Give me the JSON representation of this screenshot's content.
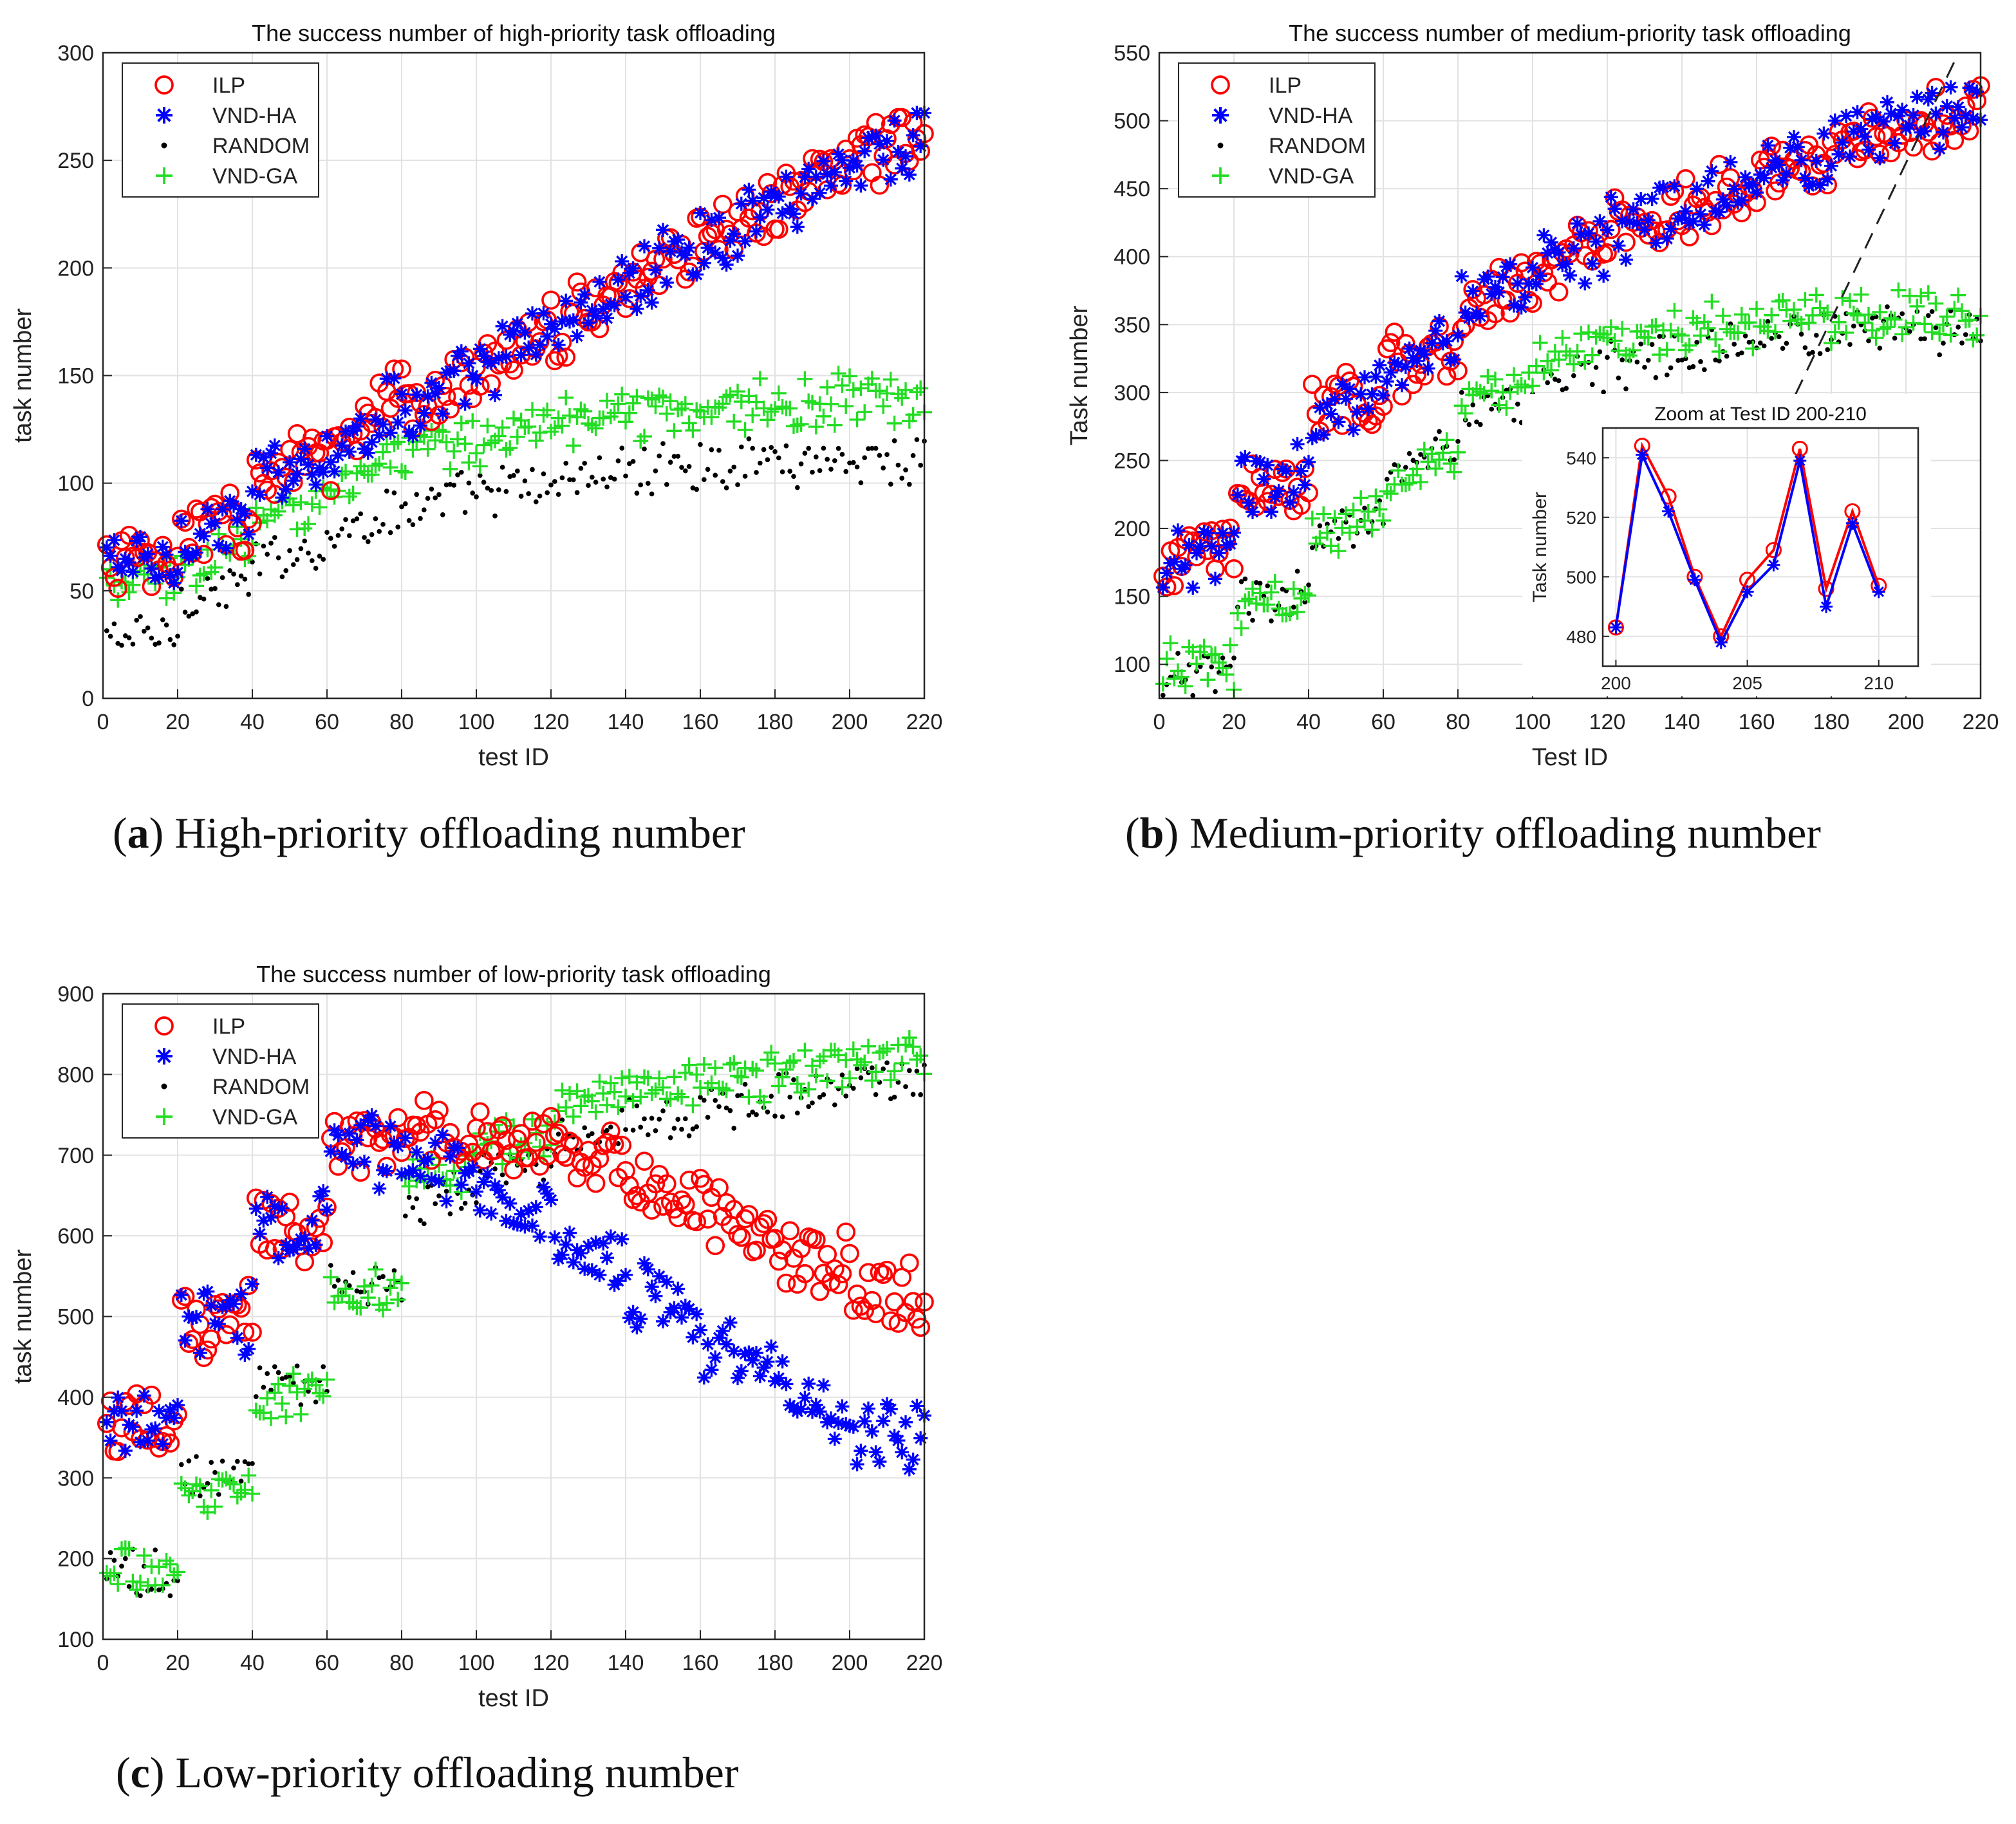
{
  "captions": {
    "a": {
      "letter": "a",
      "text": "High-priority offloading number"
    },
    "b": {
      "letter": "b",
      "text": "Medium-priority offloading number"
    },
    "c": {
      "letter": "c",
      "text": "Low-priority offloading number"
    }
  },
  "series_style": [
    {
      "name": "ILP",
      "marker": "circle",
      "color": "#ff0000"
    },
    {
      "name": "VND-HA",
      "marker": "asterisk",
      "color": "#0000ff"
    },
    {
      "name": "RANDOM",
      "marker": "dot",
      "color": "#000000"
    },
    {
      "name": "VND-GA",
      "marker": "plus",
      "color": "#22dd22"
    }
  ],
  "chart_data": [
    {
      "id": "a",
      "type": "scatter",
      "title": "The success number of high-priority task offloading",
      "xlabel": "test ID",
      "ylabel": "task number",
      "xlim": [
        0,
        220
      ],
      "ylim": [
        0,
        300
      ],
      "xticks": [
        0,
        20,
        40,
        60,
        80,
        100,
        120,
        140,
        160,
        180,
        200,
        220
      ],
      "yticks": [
        0,
        50,
        100,
        150,
        200,
        250,
        300
      ],
      "grid": true,
      "legend": "top-left",
      "x": "test IDs 1-220",
      "series": [
        {
          "name": "ILP",
          "segments": [
            [
              0,
              20,
              66,
              60
            ],
            [
              20,
              40,
              75,
              85
            ],
            [
              40,
              60,
              100,
              115
            ],
            [
              60,
              80,
              110,
              140
            ],
            [
              80,
              100,
              130,
              150
            ],
            [
              100,
              120,
              150,
              175
            ],
            [
              120,
              140,
              170,
              190
            ],
            [
              140,
              160,
              190,
              215
            ],
            [
              160,
              180,
              210,
              230
            ],
            [
              180,
              200,
              230,
              250
            ],
            [
              200,
              220,
              250,
              262
            ]
          ]
        },
        {
          "name": "VND-HA",
          "same_as": "ILP"
        },
        {
          "name": "RANDOM",
          "segments": [
            [
              0,
              20,
              28,
              30
            ],
            [
              20,
              40,
              45,
              55
            ],
            [
              40,
              60,
              62,
              72
            ],
            [
              60,
              80,
              75,
              88
            ],
            [
              80,
              100,
              88,
              95
            ],
            [
              100,
              120,
              95,
              100
            ],
            [
              120,
              140,
              100,
              106
            ],
            [
              140,
              160,
              104,
              110
            ],
            [
              160,
              180,
              108,
              112
            ],
            [
              180,
              200,
              110,
              112
            ],
            [
              200,
              220,
              110,
              112
            ]
          ]
        },
        {
          "name": "VND-GA",
          "segments": [
            [
              0,
              20,
              52,
              55
            ],
            [
              20,
              40,
              62,
              70
            ],
            [
              40,
              60,
              82,
              92
            ],
            [
              60,
              80,
              100,
              112
            ],
            [
              80,
              100,
              112,
              120
            ],
            [
              100,
              120,
              120,
              128
            ],
            [
              120,
              140,
              128,
              133
            ],
            [
              140,
              160,
              132,
              135
            ],
            [
              160,
              180,
              135,
              137
            ],
            [
              180,
              200,
              136,
              138
            ],
            [
              200,
              220,
              137,
              139
            ]
          ]
        }
      ]
    },
    {
      "id": "b",
      "type": "scatter",
      "title": "The success number of medium-priority task offloading",
      "xlabel": "Test ID",
      "ylabel": "Task number",
      "xlim": [
        0,
        220
      ],
      "ylim": [
        75,
        550
      ],
      "xticks": [
        0,
        20,
        40,
        60,
        80,
        100,
        120,
        140,
        160,
        180,
        200,
        220
      ],
      "yticks": [
        100,
        150,
        200,
        250,
        300,
        350,
        400,
        450,
        500,
        550
      ],
      "grid": true,
      "legend": "top-left",
      "x": "test IDs 1-220",
      "series": [
        {
          "name": "ILP",
          "segments": [
            [
              0,
              20,
              180,
              180
            ],
            [
              20,
              40,
              235,
              235
            ],
            [
              40,
              60,
              285,
              300
            ],
            [
              60,
              80,
              320,
              330
            ],
            [
              80,
              100,
              365,
              380
            ],
            [
              100,
              120,
              395,
              405
            ],
            [
              120,
              140,
              420,
              430
            ],
            [
              140,
              160,
              440,
              450
            ],
            [
              160,
              180,
              465,
              475
            ],
            [
              180,
              200,
              485,
              495
            ],
            [
              200,
              220,
              500,
              510
            ]
          ]
        },
        {
          "name": "VND-HA",
          "same_as": "ILP"
        },
        {
          "name": "RANDOM",
          "segments": [
            [
              0,
              20,
              95,
              92
            ],
            [
              20,
              40,
              150,
              148
            ],
            [
              40,
              60,
              200,
              205
            ],
            [
              60,
              80,
              245,
              255
            ],
            [
              80,
              100,
              285,
              290
            ],
            [
              100,
              120,
              300,
              315
            ],
            [
              120,
              140,
              320,
              325
            ],
            [
              140,
              160,
              330,
              335
            ],
            [
              160,
              180,
              340,
              345
            ],
            [
              180,
              200,
              345,
              348
            ],
            [
              200,
              220,
              348,
              345
            ]
          ]
        },
        {
          "name": "VND-GA",
          "segments": [
            [
              0,
              20,
              100,
              100
            ],
            [
              20,
              40,
              145,
              150
            ],
            [
              40,
              60,
              195,
              210
            ],
            [
              60,
              80,
              240,
              255
            ],
            [
              80,
              100,
              290,
              305
            ],
            [
              100,
              120,
              325,
              335
            ],
            [
              120,
              140,
              340,
              345
            ],
            [
              140,
              160,
              345,
              350
            ],
            [
              160,
              180,
              350,
              355
            ],
            [
              180,
              200,
              355,
              358
            ],
            [
              200,
              220,
              358,
              352
            ]
          ]
        }
      ],
      "inset": {
        "title": "Zoom at Test ID 200-210",
        "ylabel": "Task number",
        "xlim": [
          199.5,
          211.5
        ],
        "ylim": [
          470,
          550
        ],
        "xticks": [
          200,
          205,
          210
        ],
        "yticks": [
          480,
          500,
          520,
          540
        ],
        "x": [
          200,
          201,
          202,
          203,
          204,
          205,
          206,
          207,
          208,
          209,
          210
        ],
        "series": [
          {
            "name": "ILP",
            "values": [
              483,
              544,
              527,
              500,
              480,
              499,
              509,
              543,
              496,
              522,
              497
            ]
          },
          {
            "name": "VND-HA",
            "values": [
              483,
              541,
              522,
              499,
              478,
              495,
              504,
              539,
              490,
              518,
              495
            ]
          }
        ]
      }
    },
    {
      "id": "c",
      "type": "scatter",
      "title": "The success number of low-priority task offloading",
      "xlabel": "test ID",
      "ylabel": "task number",
      "xlim": [
        0,
        220
      ],
      "ylim": [
        100,
        900
      ],
      "xticks": [
        0,
        20,
        40,
        60,
        80,
        100,
        120,
        140,
        160,
        180,
        200,
        220
      ],
      "yticks": [
        100,
        200,
        300,
        400,
        500,
        600,
        700,
        800,
        900
      ],
      "grid": true,
      "legend": "top-left",
      "x": "test IDs 1-220",
      "series": [
        {
          "name": "ILP",
          "segments": [
            [
              0,
              20,
              370,
              370
            ],
            [
              20,
              40,
              495,
              500
            ],
            [
              40,
              60,
              605,
              610
            ],
            [
              60,
              80,
              715,
              705
            ],
            [
              80,
              100,
              730,
              730
            ],
            [
              100,
              120,
              720,
              715
            ],
            [
              120,
              140,
              700,
              690
            ],
            [
              140,
              160,
              670,
              650
            ],
            [
              160,
              180,
              630,
              600
            ],
            [
              180,
              200,
              580,
              560
            ],
            [
              200,
              220,
              540,
              520
            ]
          ]
        },
        {
          "name": "VND-HA",
          "segments": [
            [
              0,
              20,
              368,
              368
            ],
            [
              20,
              40,
              492,
              497
            ],
            [
              40,
              60,
              605,
              610
            ],
            [
              60,
              80,
              710,
              700
            ],
            [
              80,
              100,
              700,
              680
            ],
            [
              100,
              120,
              660,
              630
            ],
            [
              120,
              140,
              590,
              560
            ],
            [
              140,
              160,
              530,
              500
            ],
            [
              160,
              180,
              470,
              440
            ],
            [
              180,
              200,
              420,
              380
            ],
            [
              200,
              220,
              360,
              350
            ]
          ]
        },
        {
          "name": "RANDOM",
          "segments": [
            [
              0,
              20,
              180,
              180
            ],
            [
              20,
              40,
              300,
              305
            ],
            [
              40,
              60,
              420,
              425
            ],
            [
              60,
              80,
              540,
              540
            ],
            [
              80,
              100,
              640,
              650
            ],
            [
              100,
              120,
              680,
              690
            ],
            [
              120,
              140,
              710,
              730
            ],
            [
              140,
              160,
              740,
              750
            ],
            [
              160,
              180,
              760,
              770
            ],
            [
              180,
              200,
              775,
              780
            ],
            [
              200,
              220,
              790,
              795
            ]
          ]
        },
        {
          "name": "VND-GA",
          "segments": [
            [
              0,
              20,
              185,
              185
            ],
            [
              20,
              40,
              280,
              282
            ],
            [
              40,
              60,
              402,
              402
            ],
            [
              60,
              80,
              535,
              530
            ],
            [
              80,
              100,
              660,
              680
            ],
            [
              100,
              120,
              715,
              730
            ],
            [
              120,
              140,
              760,
              775
            ],
            [
              140,
              160,
              785,
              790
            ],
            [
              160,
              180,
              795,
              800
            ],
            [
              180,
              200,
              805,
              810
            ],
            [
              200,
              220,
              815,
              820
            ]
          ]
        }
      ]
    }
  ]
}
